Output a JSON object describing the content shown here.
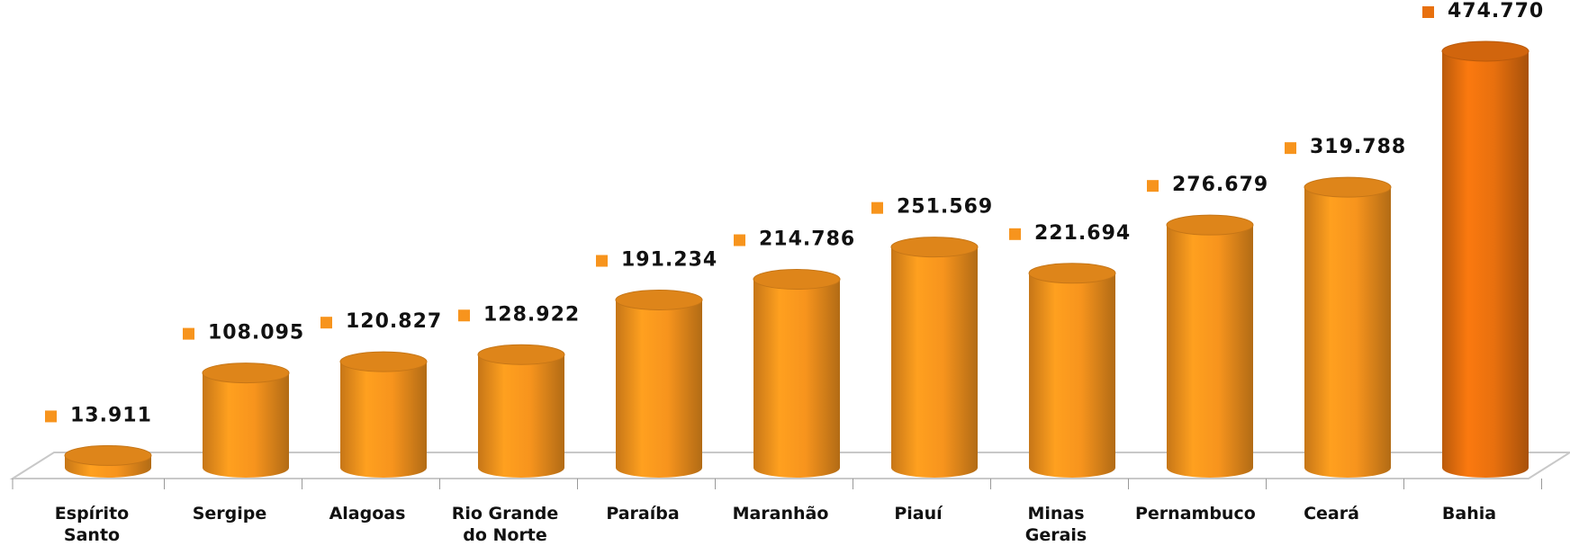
{
  "chart_data": {
    "type": "bar",
    "categories": [
      "Espírito Santo",
      "Sergipe",
      "Alagoas",
      "Rio Grande do Norte",
      "Paraíba",
      "Maranhão",
      "Piauí",
      "Minas Gerais",
      "Pernambuco",
      "Ceará",
      "Bahia"
    ],
    "values": [
      13911,
      108095,
      120827,
      128922,
      191234,
      214786,
      251569,
      221694,
      276679,
      319788,
      474770
    ],
    "value_labels": [
      "13.911",
      "108.095",
      "120.827",
      "128.922",
      "191.234",
      "214.786",
      "251.569",
      "221.694",
      "276.679",
      "319.788",
      "474.770"
    ],
    "colors": [
      "#f7941d",
      "#f7941d",
      "#f7941d",
      "#f7941d",
      "#f7941d",
      "#f7941d",
      "#f7941d",
      "#f7941d",
      "#f7941d",
      "#f7941d",
      "#e8700e"
    ]
  }
}
